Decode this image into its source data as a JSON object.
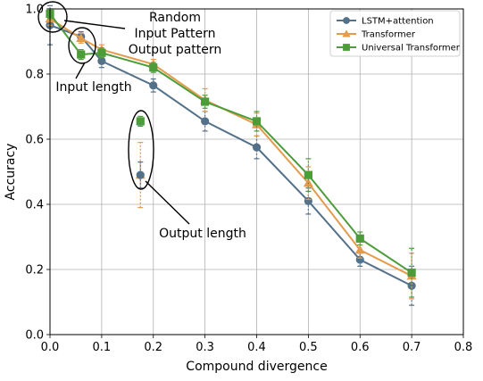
{
  "chart_data": {
    "type": "line",
    "xlabel": "Compound divergence",
    "ylabel": "Accuracy",
    "xlim": [
      0.0,
      0.8
    ],
    "ylim": [
      0.0,
      1.0
    ],
    "xticks": [
      "0.0",
      "0.1",
      "0.2",
      "0.3",
      "0.4",
      "0.5",
      "0.6",
      "0.7",
      "0.8"
    ],
    "yticks": [
      "0.0",
      "0.2",
      "0.4",
      "0.6",
      "0.8",
      "1.0"
    ],
    "grid": true,
    "legend_position": "top-right",
    "series": [
      {
        "name": "LSTM+attention",
        "color": "#54718a",
        "marker": "circle",
        "line": "solid",
        "x": [
          0.0,
          0.06,
          0.1,
          0.2,
          0.3,
          0.4,
          0.5,
          0.6,
          0.7
        ],
        "y": [
          0.95,
          0.915,
          0.84,
          0.765,
          0.655,
          0.575,
          0.41,
          0.23,
          0.15
        ],
        "err": [
          0.06,
          0.015,
          0.02,
          0.02,
          0.03,
          0.035,
          0.04,
          0.02,
          0.06
        ]
      },
      {
        "name": "Transformer",
        "color": "#e39b4c",
        "marker": "triangle",
        "line": "solid",
        "x": [
          0.0,
          0.06,
          0.1,
          0.2,
          0.3,
          0.4,
          0.5,
          0.6,
          0.7
        ],
        "y": [
          0.97,
          0.91,
          0.875,
          0.83,
          0.72,
          0.645,
          0.465,
          0.26,
          0.18
        ],
        "err": [
          0.02,
          0.015,
          0.015,
          0.015,
          0.035,
          0.035,
          0.05,
          0.025,
          0.07
        ]
      },
      {
        "name": "Universal Transformer",
        "color": "#4d9c3a",
        "marker": "square",
        "line": "solid",
        "x": [
          0.0,
          0.06,
          0.1,
          0.2,
          0.3,
          0.4,
          0.5,
          0.6,
          0.7
        ],
        "y": [
          0.985,
          0.86,
          0.865,
          0.82,
          0.715,
          0.655,
          0.49,
          0.295,
          0.19
        ],
        "err": [
          0.015,
          0.015,
          0.015,
          0.015,
          0.02,
          0.03,
          0.05,
          0.02,
          0.075
        ]
      }
    ],
    "outliers": [
      {
        "series": "Transformer",
        "x": 0.175,
        "y": 0.49,
        "err": 0.1
      },
      {
        "series": "Universal Transformer",
        "x": 0.175,
        "y": 0.655,
        "err": 0.015
      },
      {
        "series": "LSTM+attention",
        "x": 0.175,
        "y": 0.49,
        "err": 0.04
      }
    ],
    "annotations": [
      {
        "lines": [
          "Random",
          "Input Pattern",
          "Output pattern"
        ]
      },
      {
        "lines": [
          "Input length"
        ]
      },
      {
        "lines": [
          "Output length"
        ]
      }
    ]
  }
}
